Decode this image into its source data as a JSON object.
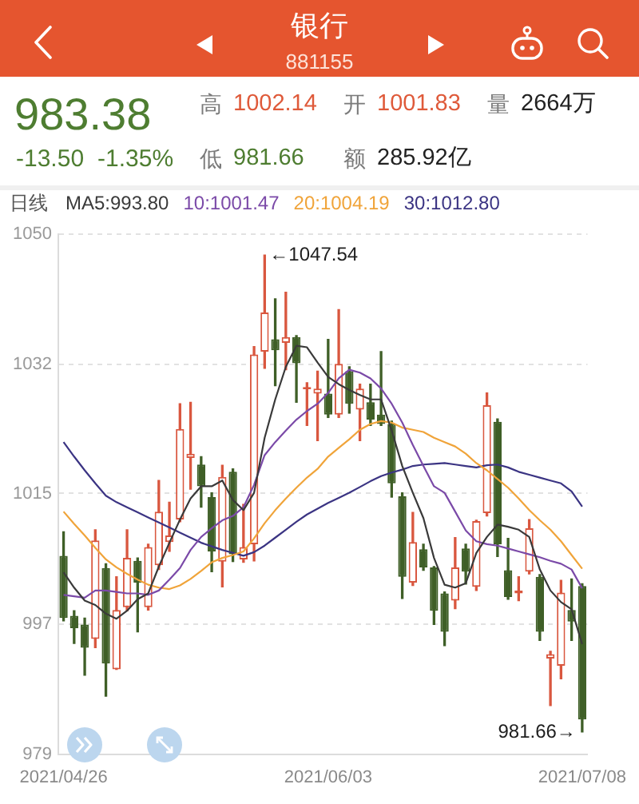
{
  "chart_data": {
    "type": "candlestick",
    "title": "银行",
    "subtitle": "881155",
    "categories": [
      "2021/04/26",
      null,
      null,
      null,
      null,
      null,
      null,
      null,
      null,
      null,
      null,
      null,
      null,
      null,
      null,
      null,
      null,
      null,
      null,
      null,
      null,
      null,
      null,
      null,
      null,
      "2021/06/03",
      null,
      null,
      null,
      null,
      null,
      null,
      null,
      null,
      null,
      null,
      null,
      null,
      null,
      null,
      null,
      null,
      null,
      null,
      null,
      null,
      null,
      null,
      null,
      "2021/07/08"
    ],
    "ohlc": [
      [
        1006.0,
        1009.3,
        997.0,
        997.4
      ],
      [
        997.7,
        998.4,
        993.9,
        996.0
      ],
      [
        996.5,
        997.4,
        989.5,
        993.3
      ],
      [
        994.5,
        1009.6,
        993.3,
        1008.1
      ],
      [
        1004.3,
        1004.9,
        986.6,
        991.1
      ],
      [
        990.3,
        1003.1,
        990.3,
        998.5
      ],
      [
        998.9,
        1009.6,
        998.4,
        1005.7
      ],
      [
        1005.3,
        1005.7,
        995.5,
        1002.3
      ],
      [
        998.9,
        1007.6,
        998.5,
        1007.2
      ],
      [
        1004.7,
        1016.4,
        1004.1,
        1012.1
      ],
      [
        1007.9,
        1013.4,
        1006.6,
        1008.8
      ],
      [
        1011.0,
        1027.0,
        1010.7,
        1023.5
      ],
      [
        1019.5,
        1027.2,
        1015.2,
        1020.1
      ],
      [
        1018.6,
        1019.7,
        1012.7,
        1015.6
      ],
      [
        1014.1,
        1014.7,
        1003.8,
        1006.6
      ],
      [
        1005.2,
        1018.5,
        1001.7,
        1016.9
      ],
      [
        1017.6,
        1018.0,
        1005.2,
        1006.2
      ],
      [
        1005.5,
        1013.1,
        1005.1,
        1007.2
      ],
      [
        1007.6,
        1034.9,
        1005.3,
        1033.8
      ],
      [
        1034.2,
        1047.54,
        1031.9,
        1039.6
      ],
      [
        1035.9,
        1041.5,
        1029.5,
        1034.4
      ],
      [
        1035.4,
        1042.4,
        1031.7,
        1036.2
      ],
      [
        1036.2,
        1036.4,
        1027.2,
        1032.6
      ],
      [
        1029.0,
        1029.9,
        1024.0,
        1029.3
      ],
      [
        1028.4,
        1031.5,
        1021.9,
        1029.1
      ],
      [
        1028.4,
        1035.9,
        1025.1,
        1025.5
      ],
      [
        1025.5,
        1040.0,
        1025.1,
        1032.5
      ],
      [
        1031.5,
        1032.1,
        1025.7,
        1027.0
      ],
      [
        1026.2,
        1029.7,
        1021.9,
        1029.1
      ],
      [
        1027.2,
        1029.7,
        1024.0,
        1024.8
      ],
      [
        1025.5,
        1034.2,
        1024.0,
        1024.2
      ],
      [
        1024.2,
        1024.6,
        1014.1,
        1016.0
      ],
      [
        1014.2,
        1014.7,
        1000.1,
        1003.1
      ],
      [
        1002.3,
        1012.0,
        1001.9,
        1007.9
      ],
      [
        1006.9,
        1007.6,
        1004.0,
        1004.4
      ],
      [
        1004.4,
        1004.5,
        996.5,
        998.4
      ],
      [
        1000.8,
        1001.0,
        993.6,
        995.5
      ],
      [
        999.8,
        1008.5,
        998.7,
        1004.4
      ],
      [
        1007.0,
        1007.6,
        1002.1,
        1003.8
      ],
      [
        1001.7,
        1010.9,
        1001.2,
        1010.8
      ],
      [
        1011.9,
        1028.5,
        1011.5,
        1026.8
      ],
      [
        1024.5,
        1024.9,
        1005.9,
        1007.6
      ],
      [
        1004.0,
        1008.4,
        1000.0,
        1000.3
      ],
      [
        1000.8,
        1003.1,
        999.8,
        1001.2
      ],
      [
        1003.8,
        1011.0,
        1003.5,
        1009.8
      ],
      [
        1003.1,
        1003.4,
        994.3,
        995.5
      ],
      [
        991.8,
        992.8,
        985.3,
        992.4
      ],
      [
        990.8,
        1002.6,
        989.0,
        1000.9
      ],
      [
        998.5,
        1002.8,
        994.3,
        996.9
      ],
      [
        1001.83,
        1002.14,
        981.66,
        983.38
      ]
    ],
    "colors": [
      "#3f5f27",
      "#3f5f27",
      "#3f5f27",
      "#d9573f",
      "#3f5f27",
      "#d9573f",
      "#d9573f",
      "#3f5f27",
      "#d9573f",
      "#d9573f",
      "#d9573f",
      "#d9573f",
      "#d9573f",
      "#3f5f27",
      "#3f5f27",
      "#d9573f",
      "#3f5f27",
      "#d9573f",
      "#d9573f",
      "#d9573f",
      "#3f5f27",
      "#d9573f",
      "#3f5f27",
      "#d9573f",
      "#d9573f",
      "#3f5f27",
      "#d9573f",
      "#3f5f27",
      "#d9573f",
      "#3f5f27",
      "#3f5f27",
      "#3f5f27",
      "#3f5f27",
      "#d9573f",
      "#3f5f27",
      "#3f5f27",
      "#3f5f27",
      "#d9573f",
      "#3f5f27",
      "#d9573f",
      "#d9573f",
      "#3f5f27",
      "#3f5f27",
      "#d9573f",
      "#d9573f",
      "#3f5f27",
      "#d9573f",
      "#d9573f",
      "#3f5f27",
      "#3f5f27"
    ],
    "series": [
      {
        "name": "MA5:993.80",
        "type": "line",
        "color": "#3a3a3a",
        "values": [
          1003.7,
          1001.6,
          999.8,
          999.2,
          998.0,
          997.3,
          998.4,
          1000.0,
          1000.8,
          1004.5,
          1007.8,
          1011.0,
          1013.9,
          1015.6,
          1015.6,
          1016.4,
          1013.7,
          1012.3,
          1014.7,
          1022.3,
          1027.6,
          1032.1,
          1035.0,
          1034.8,
          1032.7,
          1030.7,
          1029.7,
          1028.9,
          1028.2,
          1027.6,
          1027.6,
          1023.3,
          1018.4,
          1014.7,
          1011.2,
          1005.7,
          1002.0,
          1001.6,
          1002.2,
          1006.4,
          1008.6,
          1010.3,
          1010.0,
          1009.6,
          1008.6,
          1004.1,
          1001.2,
          999.6,
          998.6,
          993.8
        ]
      },
      {
        "name": "10:1001.47",
        "type": "line",
        "color": "#7b4aa8",
        "values": [
          1000.6,
          1000.4,
          1000.2,
          1001.2,
          1001.2,
          1001.0,
          1000.8,
          1000.8,
          1000.6,
          1001.2,
          1002.7,
          1004.3,
          1006.8,
          1008.6,
          1009.8,
          1010.9,
          1011.5,
          1012.7,
          1015.8,
          1019.9,
          1021.7,
          1023.3,
          1024.8,
          1026.0,
          1027.0,
          1028.5,
          1030.5,
          1031.7,
          1031.3,
          1030.5,
          1029.1,
          1027.0,
          1024.4,
          1021.3,
          1018.4,
          1015.6,
          1014.7,
          1012.1,
          1009.5,
          1008.0,
          1007.6,
          1007.4,
          1007.0,
          1006.6,
          1006.2,
          1005.8,
          1005.3,
          1004.9,
          1004.1,
          1001.5
        ]
      },
      {
        "name": "20:1004.19",
        "type": "line",
        "color": "#f0a43a",
        "values": [
          1012.1,
          1010.4,
          1008.8,
          1007.1,
          1005.5,
          1004.4,
          1003.5,
          1002.7,
          1002.0,
          1001.6,
          1001.4,
          1001.9,
          1002.8,
          1003.9,
          1005.1,
          1005.7,
          1006.1,
          1006.6,
          1008.4,
          1010.5,
          1012.3,
          1013.9,
          1015.4,
          1016.8,
          1018.0,
          1019.7,
          1020.9,
          1022.1,
          1023.4,
          1024.2,
          1024.6,
          1024.4,
          1023.7,
          1023.4,
          1023.1,
          1022.3,
          1021.7,
          1021.1,
          1020.1,
          1018.8,
          1017.8,
          1016.6,
          1015.4,
          1013.9,
          1012.3,
          1010.9,
          1009.6,
          1008.0,
          1006.1,
          1004.2
        ]
      },
      {
        "name": "30:1012.80",
        "type": "line",
        "color": "#3b3483",
        "values": [
          1021.7,
          1019.7,
          1017.8,
          1016.0,
          1014.3,
          1013.4,
          1012.7,
          1012.0,
          1011.3,
          1010.6,
          1009.9,
          1009.2,
          1008.5,
          1007.8,
          1007.3,
          1006.8,
          1006.4,
          1006.0,
          1006.5,
          1007.4,
          1008.5,
          1009.6,
          1010.7,
          1011.7,
          1012.5,
          1013.3,
          1014.0,
          1014.7,
          1015.5,
          1016.3,
          1017.0,
          1017.5,
          1017.9,
          1018.4,
          1018.6,
          1018.7,
          1018.8,
          1018.6,
          1018.4,
          1018.2,
          1018.5,
          1018.6,
          1018.2,
          1017.6,
          1017.2,
          1016.8,
          1016.4,
          1016.0,
          1014.9,
          1012.8
        ]
      }
    ],
    "legend": "top left",
    "legend_title": "日线",
    "marker": "none",
    "grid": "y",
    "ylim": [
      978.6,
      1050.4
    ],
    "yticks": [
      {
        "value": 978.6,
        "label": "979"
      },
      {
        "value": 996.6,
        "label": "997"
      },
      {
        "value": 1014.6,
        "label": "1015"
      },
      {
        "value": 1032.4,
        "label": "1032"
      },
      {
        "value": 1050.4,
        "label": "1050"
      }
    ],
    "annotations": [
      "←1047.54",
      {
        "text": "981.66→",
        "x": "2021/07/08",
        "y": 981.66
      },
      "983.38",
      "-13.50",
      "-1.35%",
      "高",
      "1002.14",
      "开",
      "1001.83",
      "量",
      "2664万",
      "低",
      "981.66",
      "额",
      "285.92亿"
    ]
  }
}
